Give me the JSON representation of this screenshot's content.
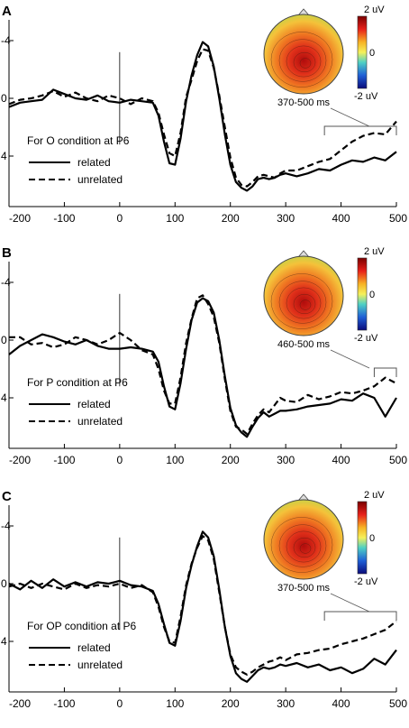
{
  "chart_data": [
    {
      "type": "line",
      "panel_label": "A",
      "condition_label": "For O condition at P6",
      "xlim": [
        -200,
        500
      ],
      "ylim": [
        -4,
        7.5
      ],
      "y_inverted": true,
      "xticks": [
        -200,
        -100,
        0,
        100,
        200,
        300,
        400,
        500
      ],
      "yticks": [
        -4,
        0,
        4
      ],
      "tick_labels_x": [
        "-200",
        "-100",
        "0",
        "100",
        "200",
        "300",
        "400",
        "500"
      ],
      "tick_labels_y": [
        "-4",
        "0",
        "4"
      ],
      "legend": [
        "related",
        "unrelated"
      ],
      "legend_position": "lower-left",
      "time_window_label": "370-500 ms",
      "window": [
        370,
        500
      ],
      "colorbar": {
        "max_label": "2 uV",
        "mid_label": "0",
        "min_label": "-2 uV"
      },
      "series": [
        {
          "name": "related",
          "style": "solid",
          "x": [
            -200,
            -180,
            -160,
            -140,
            -120,
            -100,
            -80,
            -60,
            -40,
            -20,
            0,
            20,
            40,
            60,
            70,
            80,
            90,
            100,
            110,
            120,
            130,
            140,
            150,
            160,
            170,
            180,
            190,
            200,
            210,
            220,
            230,
            240,
            250,
            260,
            270,
            280,
            290,
            300,
            320,
            340,
            360,
            380,
            400,
            420,
            440,
            460,
            480,
            500
          ],
          "y": [
            0.6,
            0.3,
            0.2,
            0.1,
            -0.6,
            -0.3,
            0,
            0.1,
            -0.2,
            0.2,
            0.3,
            0.1,
            0.2,
            0.3,
            1.2,
            3.0,
            4.5,
            4.6,
            2.8,
            0.2,
            -1.6,
            -3.0,
            -3.9,
            -3.6,
            -2.2,
            0.0,
            2.5,
            4.6,
            5.8,
            6.2,
            6.4,
            6.1,
            5.6,
            5.5,
            5.6,
            5.5,
            5.3,
            5.2,
            5.4,
            5.2,
            4.9,
            5.0,
            4.6,
            4.3,
            4.4,
            4.1,
            4.3,
            3.7
          ]
        },
        {
          "name": "unrelated",
          "style": "dashed",
          "x": [
            -200,
            -180,
            -160,
            -140,
            -120,
            -100,
            -80,
            -60,
            -40,
            -20,
            0,
            20,
            40,
            60,
            70,
            80,
            90,
            100,
            110,
            120,
            130,
            140,
            150,
            160,
            170,
            180,
            190,
            200,
            210,
            220,
            230,
            240,
            250,
            260,
            270,
            280,
            290,
            300,
            320,
            340,
            360,
            380,
            400,
            420,
            440,
            460,
            480,
            500
          ],
          "y": [
            0.4,
            0.1,
            0.0,
            -0.2,
            -0.5,
            -0.1,
            -0.4,
            0.0,
            0.2,
            -0.2,
            0.0,
            0.4,
            0.0,
            0.2,
            1.0,
            2.5,
            3.8,
            4.0,
            2.4,
            -0.1,
            -1.3,
            -2.6,
            -3.4,
            -3.3,
            -2.1,
            -0.2,
            2.0,
            4.1,
            5.5,
            6.0,
            6.1,
            5.8,
            5.4,
            5.3,
            5.4,
            5.5,
            5.2,
            5.0,
            5.0,
            4.7,
            4.4,
            4.2,
            3.6,
            3.0,
            2.6,
            2.4,
            2.5,
            1.6
          ]
        }
      ]
    },
    {
      "type": "line",
      "panel_label": "B",
      "condition_label": "For P condition at P6",
      "xlim": [
        -200,
        500
      ],
      "ylim": [
        -4,
        7.5
      ],
      "y_inverted": true,
      "xticks": [
        -200,
        -100,
        0,
        100,
        200,
        300,
        400,
        500
      ],
      "yticks": [
        -4,
        0,
        4
      ],
      "tick_labels_x": [
        "-200",
        "-100",
        "0",
        "100",
        "200",
        "300",
        "400",
        "500"
      ],
      "tick_labels_y": [
        "-4",
        "0",
        "4"
      ],
      "legend": [
        "related",
        "unrelated"
      ],
      "legend_position": "lower-left",
      "time_window_label": "460-500 ms",
      "window": [
        460,
        500
      ],
      "colorbar": {
        "max_label": "2 uV",
        "mid_label": "0",
        "min_label": "-2 uV"
      },
      "series": [
        {
          "name": "related",
          "style": "solid",
          "x": [
            -200,
            -180,
            -160,
            -140,
            -120,
            -100,
            -80,
            -60,
            -40,
            -20,
            0,
            20,
            40,
            60,
            70,
            80,
            90,
            100,
            110,
            120,
            130,
            140,
            150,
            160,
            170,
            180,
            190,
            200,
            210,
            220,
            230,
            240,
            250,
            260,
            270,
            280,
            290,
            300,
            320,
            340,
            360,
            380,
            400,
            420,
            440,
            460,
            480,
            500
          ],
          "y": [
            1.0,
            0.4,
            0.0,
            -0.4,
            -0.2,
            0.1,
            0.3,
            0.0,
            0.4,
            0.6,
            0.6,
            0.5,
            0.6,
            0.8,
            1.5,
            3.2,
            4.6,
            4.8,
            3.0,
            0.6,
            -1.4,
            -2.6,
            -2.9,
            -2.7,
            -1.9,
            0.0,
            2.5,
            4.7,
            5.9,
            6.4,
            6.7,
            6.0,
            5.4,
            5.0,
            5.3,
            5.1,
            4.9,
            4.9,
            4.8,
            4.6,
            4.5,
            4.4,
            4.1,
            4.2,
            3.7,
            4.0,
            5.3,
            4.0
          ]
        },
        {
          "name": "unrelated",
          "style": "dashed",
          "x": [
            -200,
            -180,
            -160,
            -140,
            -120,
            -100,
            -80,
            -60,
            -40,
            -20,
            0,
            20,
            40,
            60,
            70,
            80,
            90,
            100,
            110,
            120,
            130,
            140,
            150,
            160,
            170,
            180,
            190,
            200,
            210,
            220,
            230,
            240,
            250,
            260,
            270,
            280,
            290,
            300,
            320,
            340,
            360,
            380,
            400,
            420,
            440,
            460,
            480,
            500
          ],
          "y": [
            -0.2,
            -0.2,
            0.3,
            0.2,
            0.5,
            0.3,
            -0.2,
            0.0,
            0.3,
            0.0,
            -0.5,
            0.0,
            0.7,
            1.0,
            2.0,
            3.5,
            4.4,
            4.4,
            2.6,
            0.2,
            -1.5,
            -2.9,
            -3.1,
            -2.5,
            -1.6,
            0.2,
            2.7,
            4.9,
            6.0,
            6.2,
            6.5,
            5.8,
            5.2,
            4.8,
            5.0,
            4.5,
            4.0,
            4.2,
            4.3,
            3.8,
            4.1,
            3.9,
            3.6,
            3.7,
            3.5,
            3.2,
            2.6,
            3.0
          ]
        }
      ]
    },
    {
      "type": "line",
      "panel_label": "C",
      "condition_label": "For OP condition at P6",
      "xlim": [
        -200,
        500
      ],
      "ylim": [
        -4,
        7.5
      ],
      "y_inverted": true,
      "xticks": [
        -200,
        -100,
        0,
        100,
        200,
        300,
        400,
        500
      ],
      "yticks": [
        -4,
        0,
        4
      ],
      "tick_labels_x": [
        "-200",
        "-100",
        "0",
        "100",
        "200",
        "300",
        "400",
        "500"
      ],
      "tick_labels_y": [
        "-4",
        "0",
        "4"
      ],
      "legend": [
        "related",
        "unrelated"
      ],
      "legend_position": "lower-left",
      "time_window_label": "370-500 ms",
      "window": [
        370,
        500
      ],
      "colorbar": {
        "max_label": "2 uV",
        "mid_label": "0",
        "min_label": "-2 uV"
      },
      "series": [
        {
          "name": "related",
          "style": "solid",
          "x": [
            -200,
            -180,
            -160,
            -140,
            -120,
            -100,
            -80,
            -60,
            -40,
            -20,
            0,
            20,
            40,
            60,
            70,
            80,
            90,
            100,
            110,
            120,
            130,
            140,
            150,
            160,
            170,
            180,
            190,
            200,
            210,
            220,
            230,
            240,
            250,
            260,
            270,
            280,
            290,
            300,
            320,
            340,
            360,
            380,
            400,
            420,
            440,
            460,
            480,
            500
          ],
          "y": [
            0.0,
            0.4,
            -0.2,
            0.3,
            -0.3,
            0.2,
            -0.1,
            0.2,
            -0.1,
            0.0,
            -0.2,
            0.1,
            0.2,
            0.5,
            1.4,
            2.8,
            4.1,
            4.3,
            2.6,
            0.3,
            -1.3,
            -2.6,
            -3.6,
            -3.2,
            -1.9,
            0.4,
            3.0,
            5.0,
            6.2,
            6.6,
            6.8,
            6.4,
            6.0,
            5.8,
            5.9,
            5.8,
            5.6,
            5.7,
            5.5,
            5.8,
            5.6,
            6.0,
            5.8,
            6.2,
            5.9,
            5.2,
            5.6,
            4.6
          ]
        },
        {
          "name": "unrelated",
          "style": "dashed",
          "x": [
            -200,
            -180,
            -160,
            -140,
            -120,
            -100,
            -80,
            -60,
            -40,
            -20,
            0,
            20,
            40,
            60,
            70,
            80,
            90,
            100,
            110,
            120,
            130,
            140,
            150,
            160,
            170,
            180,
            190,
            200,
            210,
            220,
            230,
            240,
            250,
            260,
            270,
            280,
            290,
            300,
            320,
            340,
            360,
            380,
            400,
            420,
            440,
            460,
            480,
            500
          ],
          "y": [
            0.2,
            0.0,
            0.3,
            0.0,
            0.2,
            0.4,
            0.0,
            0.3,
            0.1,
            0.2,
            0.0,
            0.3,
            0.1,
            0.6,
            1.6,
            3.0,
            4.0,
            4.1,
            2.3,
            0.1,
            -1.4,
            -2.5,
            -3.3,
            -3.0,
            -1.7,
            0.6,
            3.0,
            4.9,
            5.8,
            6.1,
            6.3,
            6.1,
            5.8,
            5.6,
            5.4,
            5.3,
            5.1,
            5.3,
            4.9,
            4.8,
            4.6,
            4.5,
            4.2,
            4.0,
            3.8,
            3.5,
            3.2,
            2.6
          ]
        }
      ]
    }
  ]
}
